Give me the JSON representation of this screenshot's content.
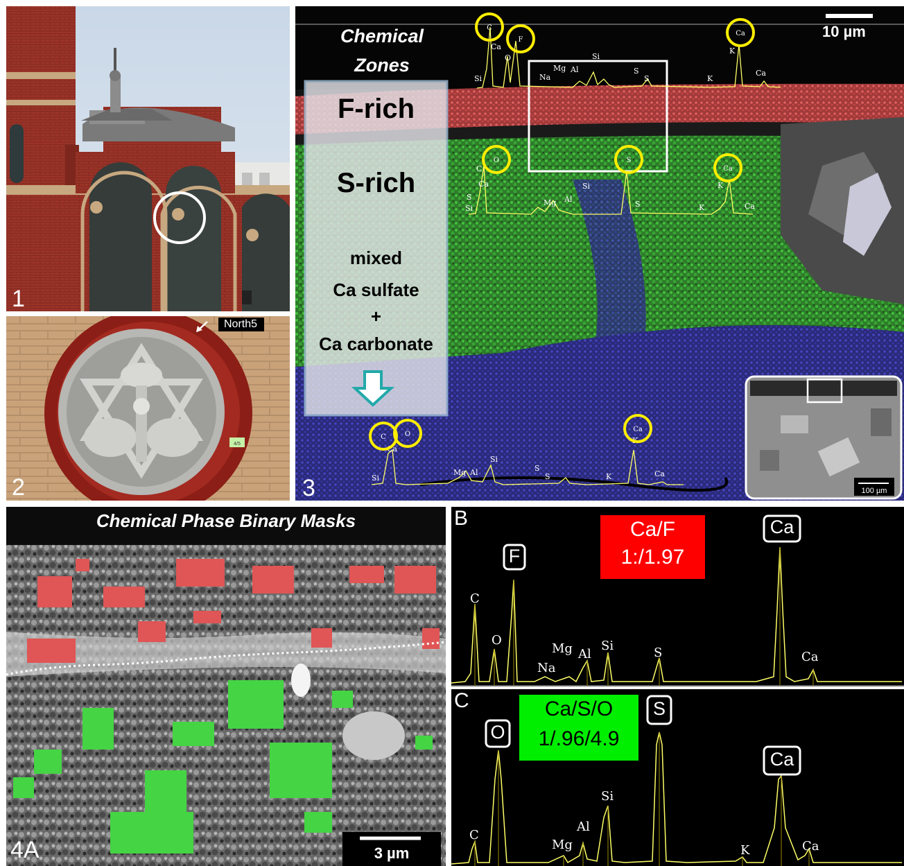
{
  "panel1": {
    "label": "1"
  },
  "panel2": {
    "label": "2",
    "north_label": "North5",
    "tag_text": "4/5"
  },
  "panel3": {
    "label": "3",
    "scale_bar": "10 µm",
    "zones_title_line1": "Chemical",
    "zones_title_line2": "Zones",
    "zone_f": "F-rich",
    "zone_s": "S-rich",
    "zone_mixed_1": "mixed",
    "zone_mixed_2": "Ca sulfate",
    "zone_mixed_3": "+",
    "zone_mixed_4": "Ca carbonate",
    "inset_scale": "100 µm",
    "spectrum_top_peaks": [
      "C",
      "F",
      "O",
      "Si",
      "Na",
      "Mg",
      "Al",
      "Si",
      "S",
      "S",
      "K",
      "Ca",
      "K",
      "Ca"
    ],
    "spectrum_mid_peaks": [
      "O",
      "C",
      "Ca",
      "S",
      "Si",
      "Mg",
      "Al",
      "Si",
      "S",
      "Ca",
      "K",
      "Ca"
    ],
    "spectrum_bottom_peaks": [
      "C",
      "O",
      "Ca",
      "Si",
      "Mg",
      "Al",
      "Si",
      "S",
      "S",
      "K",
      "Ca",
      "Ca"
    ]
  },
  "panel4": {
    "label": "4A",
    "title": "Chemical Phase Binary Masks",
    "scale_bar": "3 µm"
  },
  "panelB": {
    "label": "B",
    "ratio_title": "Ca/F",
    "ratio_value": "1:/1.97",
    "boxed_peaks": [
      "F",
      "Ca"
    ],
    "peaks": [
      "C",
      "O",
      "Na",
      "Mg",
      "Al",
      "Si",
      "S",
      "Ca"
    ]
  },
  "panelC": {
    "label": "C",
    "ratio_title": "Ca/S/O",
    "ratio_value": "1/.96/4.9",
    "boxed_peaks": [
      "O",
      "S",
      "Ca"
    ],
    "peaks": [
      "C",
      "Mg",
      "Al",
      "Si",
      "K",
      "Ca"
    ]
  },
  "colors": {
    "spectrum": "#ffff66",
    "circle": "#ffee00",
    "f_rich": "#e05050",
    "s_rich": "#3fcf3f",
    "carbonate": "#3a3aa8",
    "ratio_red": "#ff0000",
    "ratio_green": "#00ee00",
    "brick": "#9a3328"
  },
  "chart_data": [
    {
      "type": "line",
      "title": "Ca/F 1:/1.97",
      "series": [
        {
          "name": "",
          "peaks": {
            "C": 0.54,
            "O": 0.25,
            "F": 0.73,
            "Na": 0.04,
            "Mg": 0.08,
            "Al": 0.14,
            "Si": 0.19,
            "S": 0.14,
            "Ca": 1.0,
            "Ca_kb": 0.1
          }
        }
      ]
    },
    {
      "type": "line",
      "title": "Ca/S/O 1/.96/4.9",
      "series": [
        {
          "name": "",
          "peaks": {
            "C": 0.22,
            "O": 0.92,
            "Mg": 0.1,
            "Al": 0.22,
            "Si": 0.62,
            "S": 1.0,
            "K": 0.07,
            "Ca": 0.7,
            "Ca_kb": 0.12
          }
        }
      ]
    }
  ]
}
